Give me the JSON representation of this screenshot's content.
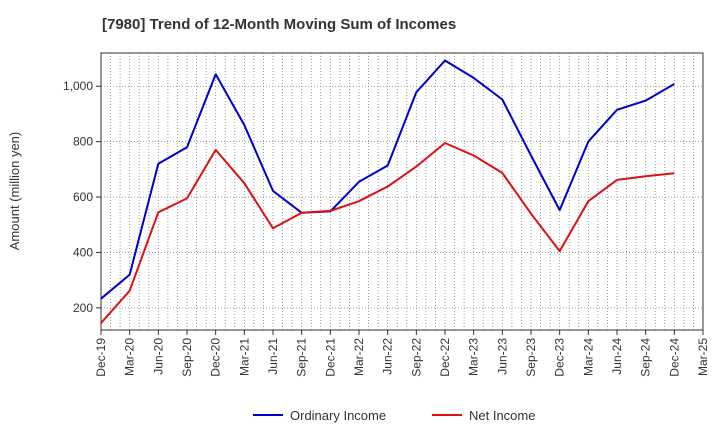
{
  "chart_data": {
    "type": "line",
    "title": "[7980]  Trend of 12-Month Moving Sum of Incomes",
    "xlabel": "",
    "ylabel": "Amount (million yen)",
    "ylim": [
      120,
      1120
    ],
    "yticks": [
      200,
      400,
      600,
      800,
      1000
    ],
    "ytick_labels": [
      "200",
      "400",
      "600",
      "800",
      "1,000"
    ],
    "categories": [
      "Dec-19",
      "Mar-20",
      "Jun-20",
      "Sep-20",
      "Dec-20",
      "Mar-21",
      "Jun-21",
      "Sep-21",
      "Dec-21",
      "Mar-22",
      "Jun-22",
      "Sep-22",
      "Dec-22",
      "Mar-23",
      "Jun-23",
      "Sep-23",
      "Dec-23",
      "Mar-24",
      "Jun-24",
      "Sep-24",
      "Dec-24",
      "Mar-25"
    ],
    "grid": true,
    "legend": "bottom-center",
    "series": [
      {
        "name": "Ordinary Income",
        "color": "#0000cc",
        "values": [
          233,
          320,
          720,
          780,
          1043,
          860,
          622,
          543,
          548,
          655,
          714,
          978,
          1093,
          1030,
          952,
          750,
          553,
          800,
          915,
          948,
          1008,
          null
        ]
      },
      {
        "name": "Net Income",
        "color": "#dd1111",
        "values": [
          145,
          262,
          545,
          595,
          770,
          650,
          487,
          543,
          550,
          585,
          638,
          710,
          795,
          750,
          687,
          540,
          405,
          585,
          662,
          675,
          686,
          null
        ]
      }
    ]
  }
}
